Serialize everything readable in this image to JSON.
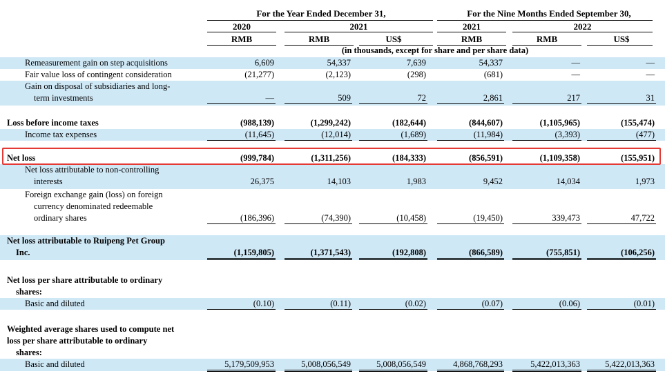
{
  "header": {
    "year_group": "For the Year Ended December 31,",
    "nine_month_group": "For the Nine Months Ended September 30,",
    "years": [
      "2020",
      "2021",
      "2021",
      "2022"
    ],
    "currencies": [
      "RMB",
      "RMB",
      "US$",
      "RMB",
      "RMB",
      "US$"
    ],
    "note": "(in thousands, except for share and per share data)"
  },
  "rows": [
    {
      "label": [
        "Remeasurement gain on step acquisitions"
      ],
      "indent": 1,
      "values": [
        "6,609",
        "54,337",
        "7,639",
        "54,337",
        "—",
        "—"
      ]
    },
    {
      "label": [
        "Fair value loss of contingent consideration"
      ],
      "indent": 1,
      "values": [
        "(21,277)",
        "(2,123)",
        "(298)",
        "(681)",
        "—",
        "—"
      ]
    },
    {
      "label": [
        "Gain on disposal of subsidiaries and long-",
        "term investments"
      ],
      "indent": 1,
      "values": [
        "—",
        "509",
        "72",
        "2,861",
        "217",
        "31"
      ]
    },
    {
      "label": [
        "Loss before income taxes"
      ],
      "indent": 0,
      "bold": true,
      "values": [
        "(988,139)",
        "(1,299,242)",
        "(182,644)",
        "(844,607)",
        "(1,105,965)",
        "(155,474)"
      ]
    },
    {
      "label": [
        "Income tax expenses"
      ],
      "indent": 1,
      "values": [
        "(11,645)",
        "(12,014)",
        "(1,689)",
        "(11,984)",
        "(3,393)",
        "(477)"
      ]
    },
    {
      "label": [
        "Net loss"
      ],
      "indent": 0,
      "bold": true,
      "values": [
        "(999,784)",
        "(1,311,256)",
        "(184,333)",
        "(856,591)",
        "(1,109,358)",
        "(155,951)"
      ]
    },
    {
      "label": [
        "Net loss attributable to non-controlling",
        "interests"
      ],
      "indent": 1,
      "values": [
        "26,375",
        "14,103",
        "1,983",
        "9,452",
        "14,034",
        "1,973"
      ]
    },
    {
      "label": [
        "Foreign exchange gain (loss) on foreign",
        "currency denominated redeemable",
        "ordinary shares"
      ],
      "indent": 1,
      "values": [
        "(186,396)",
        "(74,390)",
        "(10,458)",
        "(19,450)",
        "339,473",
        "47,722"
      ]
    },
    {
      "label": [
        "Net loss attributable to Ruipeng Pet Group",
        "Inc."
      ],
      "indent": 0,
      "bold": true,
      "values": [
        "(1,159,805)",
        "(1,371,543)",
        "(192,808)",
        "(866,589)",
        "(755,851)",
        "(106,256)"
      ]
    },
    {
      "label": [
        "Net loss per share attributable to ordinary",
        "shares:"
      ],
      "indent": 0,
      "bold": true,
      "values": []
    },
    {
      "label": [
        "Basic and diluted"
      ],
      "indent": 1,
      "values": [
        "(0.10)",
        "(0.11)",
        "(0.02)",
        "(0.07)",
        "(0.06)",
        "(0.01)"
      ]
    },
    {
      "label": [
        "Weighted average shares used to compute net",
        "loss per share attributable to ordinary",
        "shares:"
      ],
      "indent": 0,
      "bold": true,
      "values": []
    },
    {
      "label": [
        "Basic and diluted"
      ],
      "indent": 1,
      "values": [
        "5,179,509,953",
        "5,008,056,549",
        "5,008,056,549",
        "4,868,768,293",
        "5,422,013,363",
        "5,422,013,363"
      ]
    }
  ]
}
